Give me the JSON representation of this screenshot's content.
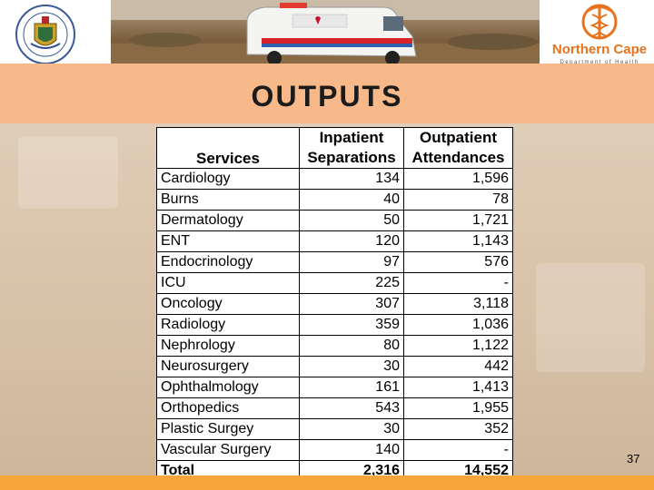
{
  "slide": {
    "title": "OUTPUTS",
    "page_number": "37"
  },
  "logos": {
    "left": "provincial-crest",
    "right": "Northern Cape",
    "right_sub": "Department of Health"
  },
  "table": {
    "headers": {
      "services": "Services",
      "inpatient": "Inpatient Separations",
      "outpatient": "Outpatient Attendances"
    },
    "rows": [
      {
        "service": "Cardiology",
        "inpatient": "134",
        "outpatient": "1,596"
      },
      {
        "service": "Burns",
        "inpatient": "40",
        "outpatient": "78"
      },
      {
        "service": "Dermatology",
        "inpatient": "50",
        "outpatient": "1,721"
      },
      {
        "service": "ENT",
        "inpatient": "120",
        "outpatient": "1,143"
      },
      {
        "service": "Endocrinology",
        "inpatient": "97",
        "outpatient": "576"
      },
      {
        "service": "ICU",
        "inpatient": "225",
        "outpatient": "-"
      },
      {
        "service": "Oncology",
        "inpatient": "307",
        "outpatient": "3,118"
      },
      {
        "service": "Radiology",
        "inpatient": "359",
        "outpatient": "1,036"
      },
      {
        "service": "Nephrology",
        "inpatient": "80",
        "outpatient": "1,122"
      },
      {
        "service": "Neurosurgery",
        "inpatient": "30",
        "outpatient": "442"
      },
      {
        "service": "Ophthalmology",
        "inpatient": "161",
        "outpatient": "1,413"
      },
      {
        "service": "Orthopedics",
        "inpatient": "543",
        "outpatient": "1,955"
      },
      {
        "service": "Plastic Surgey",
        "inpatient": "30",
        "outpatient": "352"
      },
      {
        "service": "Vascular Surgery",
        "inpatient": "140",
        "outpatient": "-"
      }
    ],
    "total": {
      "service": "Total",
      "inpatient": "2,316",
      "outpatient": "14,552"
    }
  },
  "colors": {
    "banner": "#f7b98a",
    "bottom_bar": "#f7a63a",
    "brand_orange": "#e8731e"
  }
}
